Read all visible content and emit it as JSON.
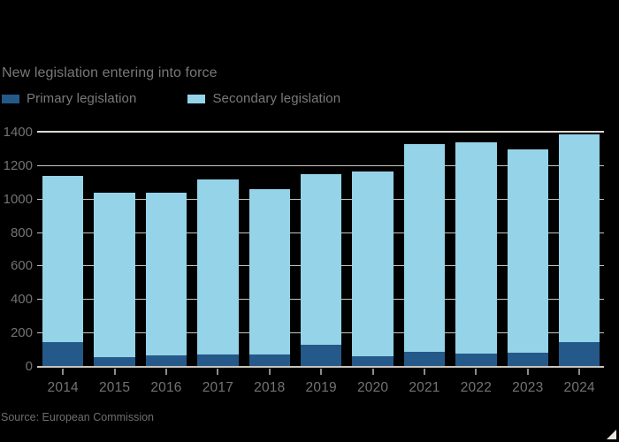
{
  "figure": {
    "subtitle": "New legislation entering into force",
    "source": "Source: European Commission",
    "colors": {
      "background": "#000000",
      "primary_series": "#25598a",
      "secondary_series": "#95d3e8",
      "gridline": "#c9c5bd",
      "top_rule": "#dedad2",
      "axis_text": "#737373",
      "subtitle_text": "#787878",
      "source_text": "#6e6e6e",
      "corner_triangle": "#e9e5dd"
    }
  },
  "chart_data": {
    "type": "bar",
    "stacked": true,
    "title": "New legislation entering into force",
    "xlabel": "",
    "ylabel": "",
    "categories": [
      "2014",
      "2015",
      "2016",
      "2017",
      "2018",
      "2019",
      "2020",
      "2021",
      "2022",
      "2023",
      "2024"
    ],
    "series": [
      {
        "name": "Primary legislation",
        "color": "#25598a",
        "values": [
          150,
          60,
          70,
          75,
          75,
          130,
          65,
          90,
          80,
          85,
          150
        ]
      },
      {
        "name": "Secondary legislation",
        "color": "#95d3e8",
        "values": [
          990,
          980,
          970,
          1045,
          985,
          1020,
          1105,
          1240,
          1260,
          1215,
          1240
        ]
      }
    ],
    "stack_totals": [
      1140,
      1040,
      1040,
      1120,
      1060,
      1150,
      1170,
      1330,
      1340,
      1300,
      1390
    ],
    "ylim": [
      0,
      1400
    ],
    "yticks": [
      0,
      200,
      400,
      600,
      800,
      1000,
      1200,
      1400
    ],
    "grid": true,
    "legend_position": "top-left",
    "source": "Source: European Commission"
  }
}
